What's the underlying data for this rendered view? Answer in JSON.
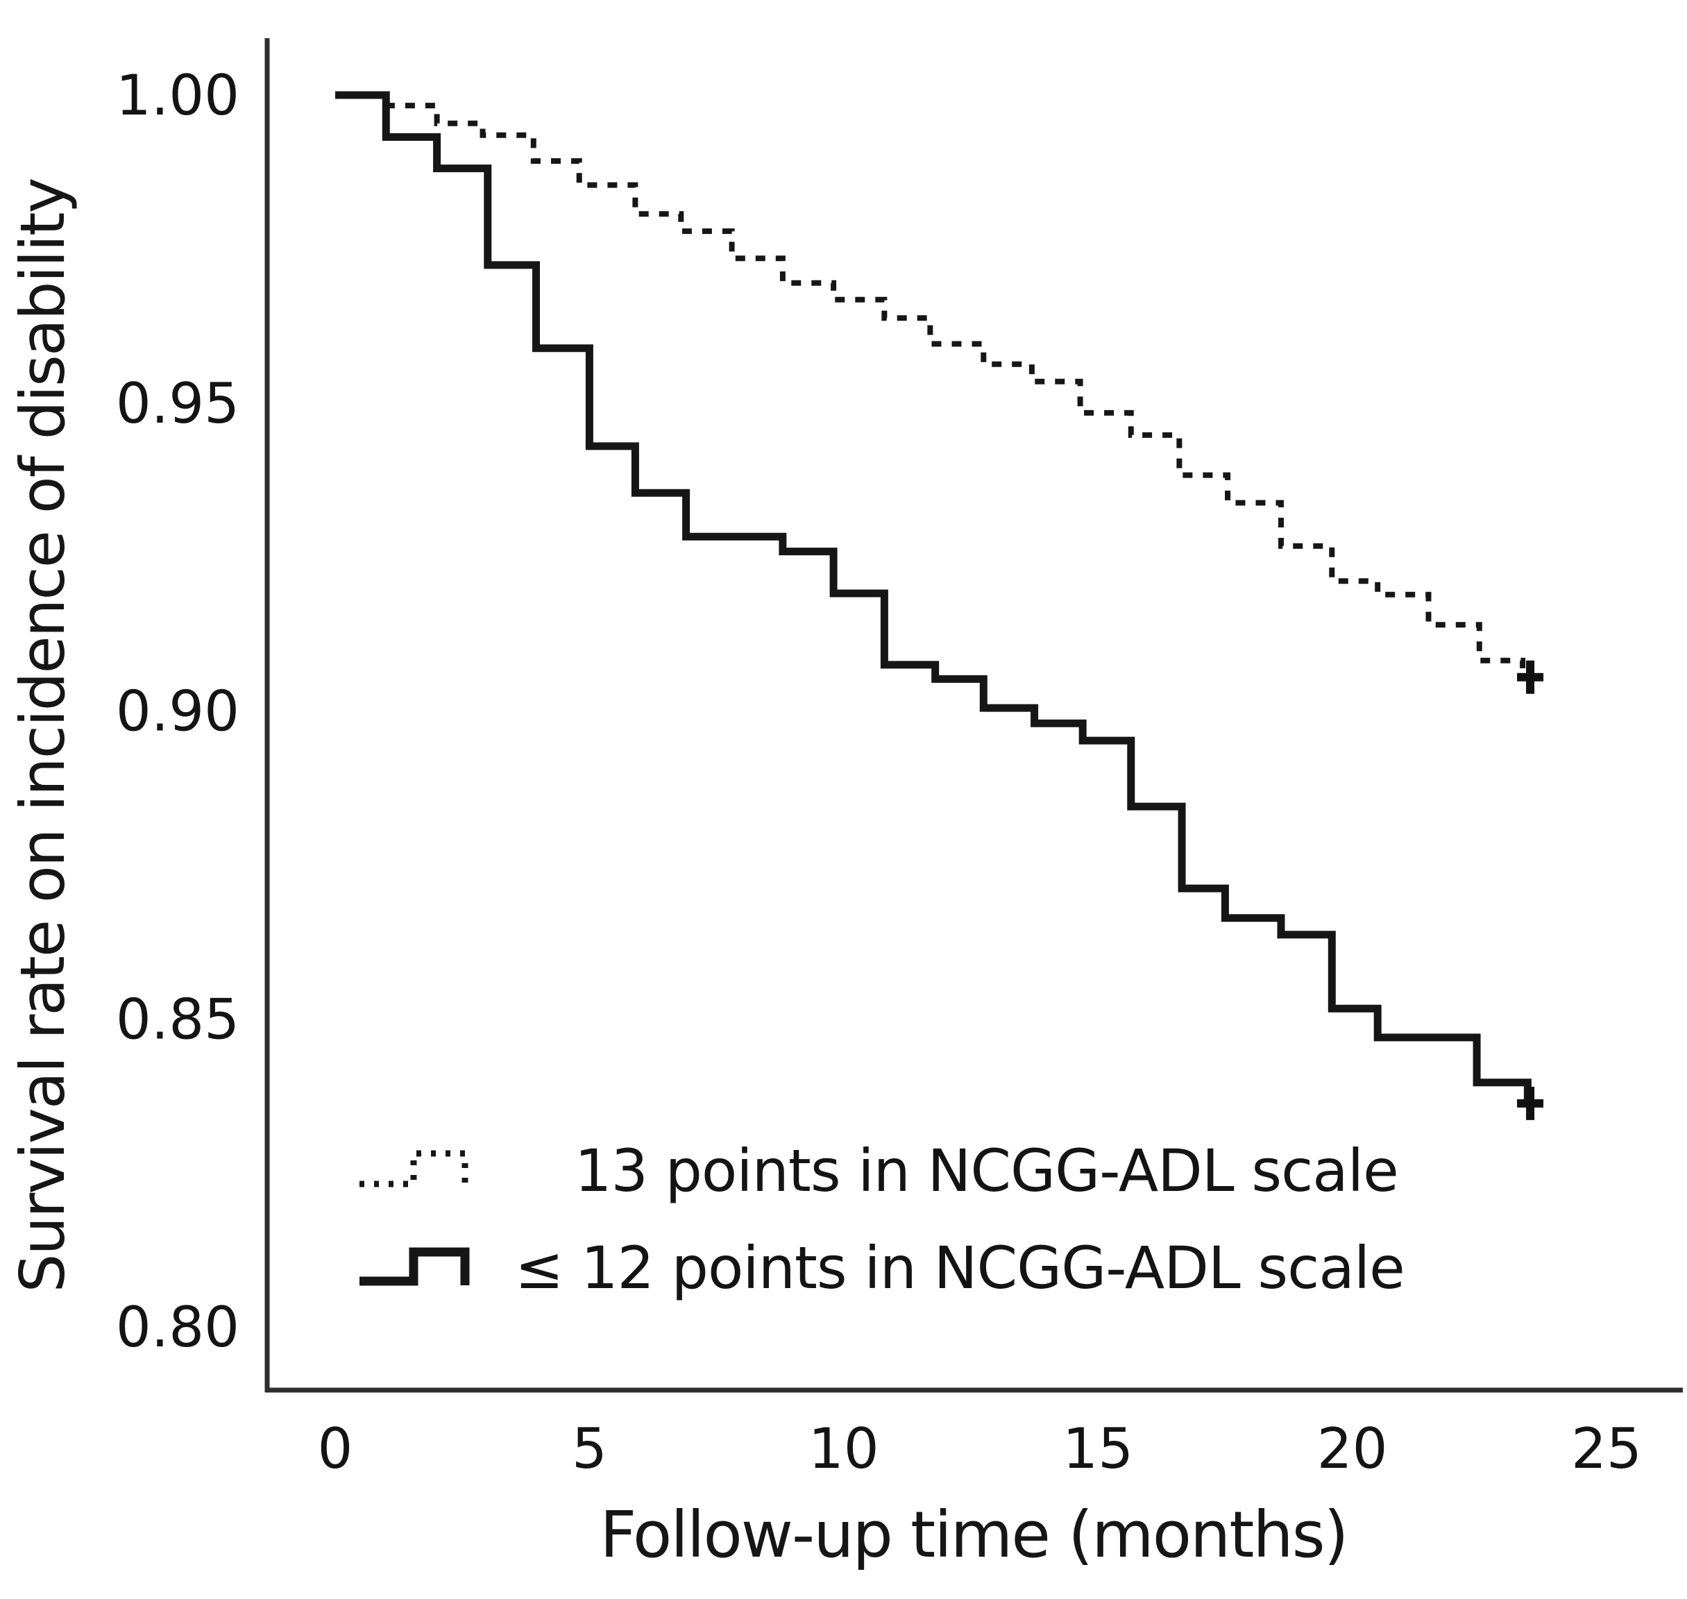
{
  "figure": {
    "background": "#ffffff",
    "line_color": "#161616"
  },
  "chart_data": {
    "type": "line",
    "subtype": "kaplan-meier-step",
    "title": "",
    "xlabel": "Follow-up time (months)",
    "ylabel": "Survival rate on incidence of disability",
    "xlim": [
      0,
      25
    ],
    "ylim": [
      0.8,
      1.0
    ],
    "grid": false,
    "legend_position": "inside-lower-left",
    "xticks": [
      {
        "label": "0",
        "value": 0
      },
      {
        "label": "5",
        "value": 5
      },
      {
        "label": "10",
        "value": 10
      },
      {
        "label": "15",
        "value": 15
      },
      {
        "label": "20",
        "value": 20
      },
      {
        "label": "25",
        "value": 25
      }
    ],
    "yticks": [
      {
        "label": "1.00",
        "value": 1.0
      },
      {
        "label": "0.95",
        "value": 0.95
      },
      {
        "label": "0.90",
        "value": 0.9
      },
      {
        "label": "0.85",
        "value": 0.85
      },
      {
        "label": "0.80",
        "value": 0.8
      }
    ],
    "series": [
      {
        "name": "13 points in NCGG-ADL scale",
        "style": "dotted",
        "points": [
          [
            0,
            1.0
          ],
          [
            1,
            0.9983
          ],
          [
            2,
            0.9954
          ],
          [
            2.9,
            0.9935
          ],
          [
            3.9,
            0.9893
          ],
          [
            4.8,
            0.9854
          ],
          [
            5.9,
            0.9807
          ],
          [
            6.8,
            0.9779
          ],
          [
            7.8,
            0.9735
          ],
          [
            8.8,
            0.9695
          ],
          [
            9.8,
            0.9668
          ],
          [
            10.8,
            0.9638
          ],
          [
            11.7,
            0.9596
          ],
          [
            12.75,
            0.9563
          ],
          [
            13.7,
            0.9535
          ],
          [
            14.65,
            0.9484
          ],
          [
            15.65,
            0.9448
          ],
          [
            16.6,
            0.9383
          ],
          [
            17.55,
            0.9338
          ],
          [
            18.6,
            0.9268
          ],
          [
            19.6,
            0.9211
          ],
          [
            20.5,
            0.9189
          ],
          [
            21.5,
            0.914
          ],
          [
            22.5,
            0.9082
          ],
          [
            23.35,
            0.9055
          ]
        ],
        "end_time": 23.6,
        "censor": {
          "t": 23.5,
          "s": 0.9055
        }
      },
      {
        "name": "≤ 12 points in NCGG-ADL scale",
        "style": "solid",
        "points": [
          [
            0,
            1.0
          ],
          [
            1,
            0.9932
          ],
          [
            2,
            0.9881
          ],
          [
            3,
            0.9724
          ],
          [
            3.95,
            0.9589
          ],
          [
            5,
            0.943
          ],
          [
            5.9,
            0.9354
          ],
          [
            6.9,
            0.9283
          ],
          [
            8.8,
            0.9259
          ],
          [
            9.8,
            0.9191
          ],
          [
            10.8,
            0.9075
          ],
          [
            11.8,
            0.9052
          ],
          [
            12.75,
            0.9005
          ],
          [
            13.75,
            0.898
          ],
          [
            14.7,
            0.8952
          ],
          [
            15.65,
            0.8845
          ],
          [
            16.65,
            0.8712
          ],
          [
            17.5,
            0.8664
          ],
          [
            18.6,
            0.8637
          ],
          [
            19.6,
            0.8517
          ],
          [
            20.5,
            0.847
          ],
          [
            22.45,
            0.8397
          ],
          [
            23.45,
            0.8363
          ]
        ],
        "end_time": 23.6,
        "censor": {
          "t": 23.5,
          "s": 0.8363
        }
      }
    ]
  }
}
